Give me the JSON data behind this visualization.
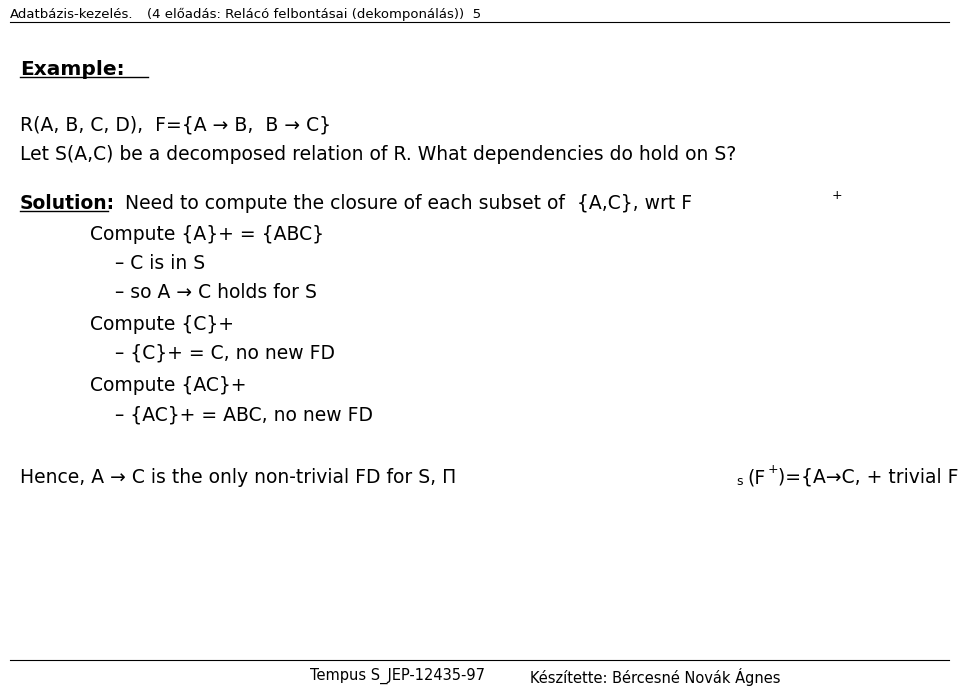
{
  "bg_color": "#ffffff",
  "header_left": "Adatbázis-kezelés.",
  "header_mid": "    (4 előadás: Relácó felbontásai (dekomponálás))  5",
  "footer_left": "Tempus S_JEP-12435-97",
  "footer_right": "Készítette: Bércesné Novák Ágnes",
  "example_label": "Example:",
  "line1": "R(A, B, C, D),  F={A → B,  B → C}",
  "line2": "Let S(A,C) be a decomposed relation of R. What dependencies do hold on S?",
  "solution_label": "Solution:",
  "solution_rest": "  Need to compute the closure of each subset of  {A,C}, wrt F",
  "solution_sup": "+",
  "indent1a": "Compute {A}+ = {ABC}",
  "indent2a": "– C is in S",
  "indent2b": "– so A → C holds for S",
  "indent1b": "Compute {C}+",
  "indent2c": "– {C}+ = C, no new FD",
  "indent1c": "Compute {AC}+",
  "indent2d": "– {AC}+ = ABC, no new FD",
  "hence_main": "Hence, A → C is the only non-trivial FD for S, Π",
  "hence_sub": "s",
  "hence_paren": "(F",
  "hence_sup": "+",
  "hence_tail": ")={A→C, + trivial FDs}",
  "fs_header": 9.5,
  "fs_body": 13.5,
  "fs_footer": 10.5,
  "fs_super": 9.0
}
